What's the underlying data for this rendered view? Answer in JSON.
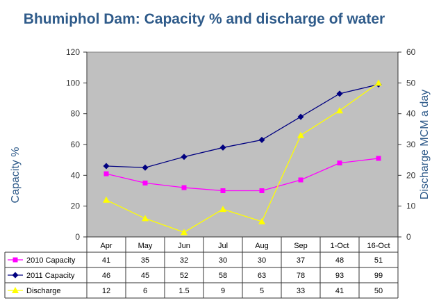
{
  "chart_data": {
    "type": "line",
    "title": "Bhumiphol Dam: Capacity % and discharge of water",
    "categories": [
      "Apr",
      "May",
      "Jun",
      "Jul",
      "Aug",
      "Sep",
      "1-Oct",
      "16-Oct"
    ],
    "ylabel": "Capacity %",
    "y2label": "Discharge MCM a day",
    "ylim": [
      0,
      120
    ],
    "y2lim": [
      0,
      60
    ],
    "yticks": [
      "0",
      "20",
      "40",
      "60",
      "80",
      "100",
      "120"
    ],
    "y2ticks": [
      "0",
      "10",
      "20",
      "30",
      "40",
      "50",
      "60"
    ],
    "grid": false,
    "legend": "data-table",
    "plot_background": "#c0c0c0",
    "series": [
      {
        "name": "2010 Capacity",
        "axis": "left",
        "color": "#ff00ff",
        "marker": "square",
        "values": [
          41,
          35,
          32,
          30,
          30,
          37,
          48,
          51
        ],
        "labels": [
          "41",
          "35",
          "32",
          "30",
          "30",
          "37",
          "48",
          "51"
        ]
      },
      {
        "name": "2011 Capacity",
        "axis": "left",
        "color": "#000080",
        "marker": "diamond",
        "values": [
          46,
          45,
          52,
          58,
          63,
          78,
          93,
          99
        ],
        "labels": [
          "46",
          "45",
          "52",
          "58",
          "63",
          "78",
          "93",
          "99"
        ]
      },
      {
        "name": "Discharge",
        "axis": "right",
        "color": "#ffff00",
        "marker": "triangle",
        "values": [
          12,
          6,
          1.5,
          9,
          5,
          33,
          41,
          50
        ],
        "labels": [
          "12",
          "6",
          "1.5",
          "9",
          "5",
          "33",
          "41",
          "50"
        ]
      }
    ]
  }
}
